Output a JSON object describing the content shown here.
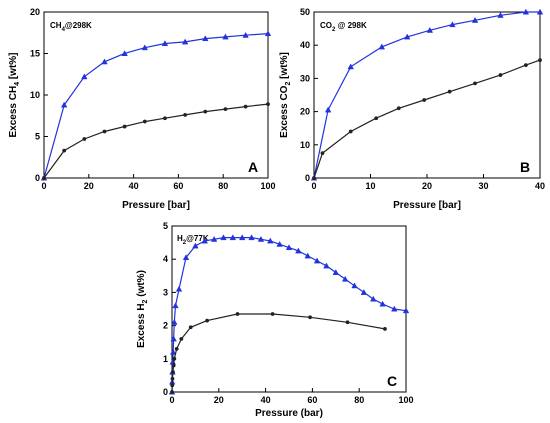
{
  "chart_data": [
    {
      "type": "line",
      "panel_letter": "A",
      "annotation": "CH4@298K",
      "xlabel": "Pressure [bar]",
      "ylabel": "Excess CH4 [wt%]",
      "xlim": [
        0,
        100
      ],
      "ylim": [
        0,
        20
      ],
      "xticks": [
        0,
        20,
        40,
        60,
        80,
        100
      ],
      "yticks": [
        0,
        5,
        10,
        15,
        20
      ],
      "series": [
        {
          "color": "#2233dd",
          "marker": "triangle",
          "x": [
            0,
            9,
            18,
            27,
            36,
            45,
            54,
            63,
            72,
            81,
            90,
            100
          ],
          "y": [
            0,
            8.8,
            12.2,
            14.0,
            15.0,
            15.7,
            16.2,
            16.4,
            16.8,
            17.0,
            17.2,
            17.4
          ]
        },
        {
          "color": "#222222",
          "marker": "circle",
          "x": [
            0,
            9,
            18,
            27,
            36,
            45,
            54,
            63,
            72,
            81,
            90,
            100
          ],
          "y": [
            0,
            3.3,
            4.7,
            5.6,
            6.2,
            6.8,
            7.2,
            7.6,
            8.0,
            8.3,
            8.6,
            8.9
          ]
        }
      ]
    },
    {
      "type": "line",
      "panel_letter": "B",
      "annotation": "CO2 @ 298K",
      "xlabel": "Pressure [bar]",
      "ylabel": "Excess CO2 [wt%]",
      "xlim": [
        0,
        40
      ],
      "ylim": [
        0,
        50
      ],
      "xticks": [
        0,
        10,
        20,
        30,
        40
      ],
      "yticks": [
        0,
        10,
        20,
        30,
        40,
        50
      ],
      "series": [
        {
          "color": "#2233dd",
          "marker": "triangle",
          "x": [
            0,
            2.5,
            6.5,
            12,
            16.5,
            20.5,
            24.5,
            28.5,
            33,
            37.5,
            40
          ],
          "y": [
            0,
            20.5,
            33.5,
            39.5,
            42.5,
            44.5,
            46.2,
            47.5,
            49.0,
            50.5,
            51
          ]
        },
        {
          "color": "#222222",
          "marker": "circle",
          "x": [
            0,
            1.5,
            6.5,
            11,
            15,
            19.5,
            24,
            28.5,
            33,
            37.5,
            40
          ],
          "y": [
            0,
            7.5,
            14.0,
            18.0,
            21.0,
            23.5,
            26.0,
            28.5,
            31.0,
            34.0,
            35.5
          ]
        }
      ]
    },
    {
      "type": "line",
      "panel_letter": "C",
      "annotation": "H2@77K",
      "xlabel": "Pressure (bar)",
      "ylabel": "Excess H2 (wt%)",
      "xlim": [
        0,
        100
      ],
      "ylim": [
        0,
        5
      ],
      "xticks": [
        0,
        20,
        40,
        60,
        80,
        100
      ],
      "yticks": [
        0,
        1,
        2,
        3,
        4,
        5
      ],
      "series": [
        {
          "color": "#2233dd",
          "marker": "triangle",
          "x": [
            0,
            0.1,
            0.2,
            0.3,
            0.5,
            0.7,
            1,
            1.5,
            3,
            6,
            10,
            14,
            18,
            22,
            26,
            30,
            34,
            38,
            42,
            46,
            50,
            54,
            58,
            62,
            66,
            70,
            74,
            78,
            82,
            86,
            90,
            95,
            100
          ],
          "y": [
            0,
            0.3,
            0.6,
            0.9,
            1.2,
            1.6,
            2.1,
            2.6,
            3.1,
            4.05,
            4.4,
            4.55,
            4.6,
            4.65,
            4.65,
            4.65,
            4.65,
            4.6,
            4.55,
            4.45,
            4.35,
            4.25,
            4.1,
            3.95,
            3.8,
            3.6,
            3.4,
            3.2,
            3.0,
            2.8,
            2.65,
            2.5,
            2.45
          ]
        },
        {
          "color": "#222222",
          "marker": "circle",
          "x": [
            0,
            0.1,
            0.2,
            0.4,
            0.7,
            1,
            2,
            4,
            8,
            15,
            28,
            43,
            59,
            75,
            91
          ],
          "y": [
            0,
            0.2,
            0.4,
            0.6,
            0.8,
            1.0,
            1.3,
            1.6,
            1.95,
            2.15,
            2.35,
            2.35,
            2.25,
            2.1,
            1.9
          ]
        }
      ]
    }
  ]
}
